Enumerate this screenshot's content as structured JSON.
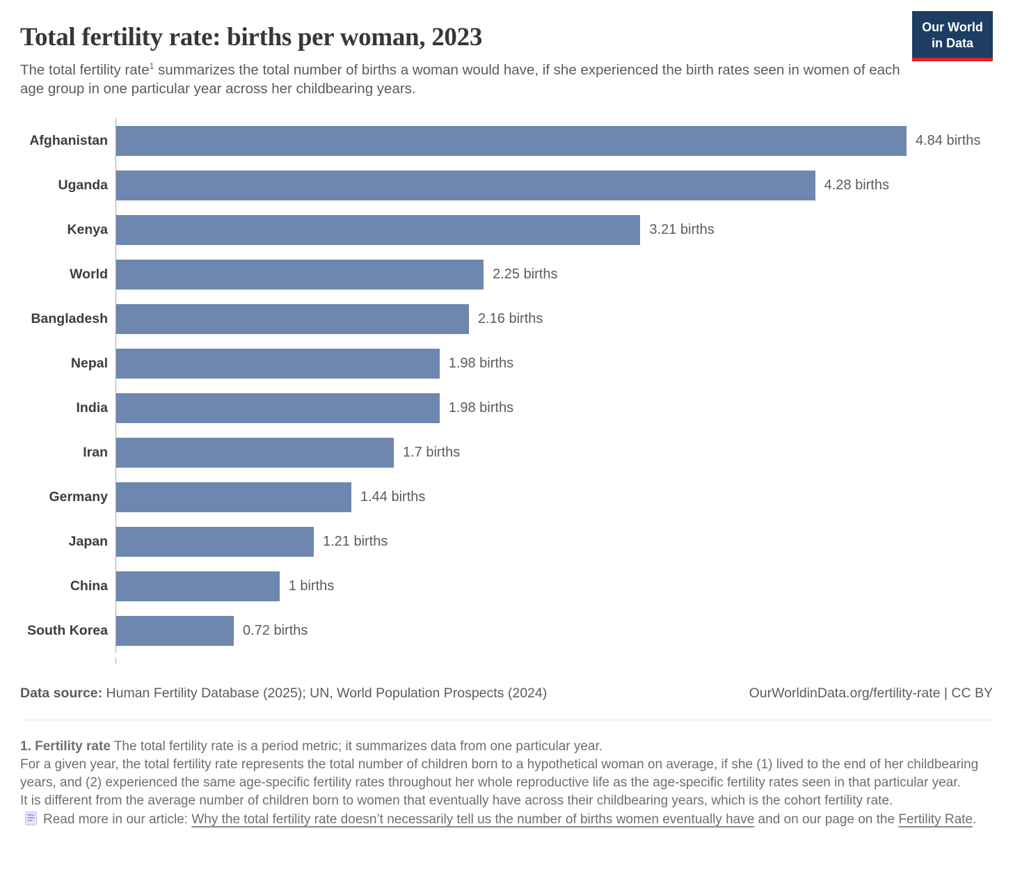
{
  "header": {
    "title": "Total fertility rate: births per woman, 2023",
    "subtitle_before_sup": "The total fertility rate",
    "subtitle_sup": "1",
    "subtitle_after_sup": " summarizes the total number of births a woman would have, if she experienced the birth rates seen in women of each age group in one particular year across her childbearing years.",
    "logo_line1": "Our World",
    "logo_line2": "in Data"
  },
  "chart_data": {
    "type": "bar",
    "orientation": "horizontal",
    "title": "Total fertility rate: births per woman, 2023",
    "categories": [
      "Afghanistan",
      "Uganda",
      "Kenya",
      "World",
      "Bangladesh",
      "Nepal",
      "India",
      "Iran",
      "Germany",
      "Japan",
      "China",
      "South Korea"
    ],
    "values": [
      4.84,
      4.28,
      3.21,
      2.25,
      2.16,
      1.98,
      1.98,
      1.7,
      1.44,
      1.21,
      1,
      0.72
    ],
    "value_labels": [
      "4.84 births",
      "4.28 births",
      "3.21 births",
      "2.25 births",
      "2.16 births",
      "1.98 births",
      "1.98 births",
      "1.7 births",
      "1.44 births",
      "1.21 births",
      "1 births",
      "0.72 births"
    ],
    "unit": "births",
    "xlabel": "",
    "ylabel": "",
    "xlim": [
      0,
      4.84
    ],
    "grid": false,
    "legend": false,
    "bar_color": "#6e87ae",
    "axis_color": "#a3a7ad"
  },
  "colors": {
    "logo_bg": "#1d3d63",
    "logo_red": "#e0232a",
    "title_text": "#383636",
    "subtitle_text": "#5b5b5b",
    "footnote_text": "#6e6e6e"
  },
  "footer": {
    "data_source_label": "Data source:",
    "data_source_value": " Human Fertility Database (2025); UN, World Population Prospects (2024)",
    "attribution": "OurWorldinData.org/fertility-rate | CC BY"
  },
  "footnote": {
    "term": "1. Fertility rate",
    "line1": " The total fertility rate is a period metric; it summarizes data from one particular year.",
    "para2": "For a given year, the total fertility rate represents the total number of children born to a hypothetical woman on average, if she (1) lived to the end of her childbearing years, and (2) experienced the same age-specific fertility rates throughout her whole reproductive life as the age-specific fertility rates seen in that particular year.",
    "para3": "It is different from the average number of children born to women that eventually have across their childbearing years, which is the cohort fertility rate.",
    "readmore_prefix": "Read more in our article: ",
    "link1": "Why the total fertility rate doesn’t necessarily tell us the number of births women eventually have",
    "readmore_middle": " and on our page on the ",
    "link2": "Fertility Rate",
    "readmore_suffix": "."
  }
}
